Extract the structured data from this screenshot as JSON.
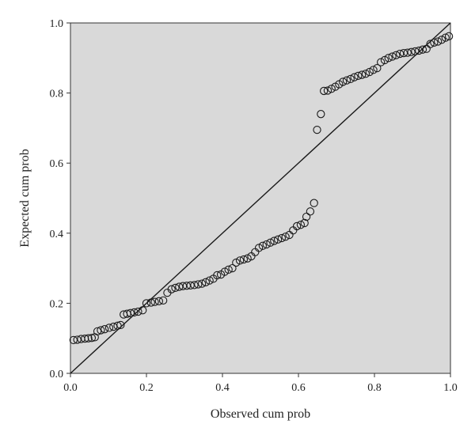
{
  "chart_data": {
    "type": "scatter",
    "title": "",
    "xlabel": "Observed cum prob",
    "ylabel": "Expected cum prob",
    "xlim": [
      0,
      1
    ],
    "ylim": [
      0,
      1
    ],
    "xticks": [
      "0.0",
      "0.2",
      "0.4",
      "0.6",
      "0.8",
      "1.0"
    ],
    "yticks": [
      "0.0",
      "0.2",
      "0.4",
      "0.6",
      "0.8",
      "1.0"
    ],
    "grid": false,
    "legend": "none",
    "reference_line": {
      "from": [
        0,
        0
      ],
      "to": [
        1,
        1
      ]
    },
    "colors": {
      "plot_background": "#d9d9d9",
      "marker_stroke": "#1a1a1a",
      "line": "#1a1a1a"
    },
    "series": [
      {
        "points": [
          [
            0.008,
            0.095
          ],
          [
            0.018,
            0.096
          ],
          [
            0.028,
            0.098
          ],
          [
            0.038,
            0.099
          ],
          [
            0.047,
            0.1
          ],
          [
            0.056,
            0.101
          ],
          [
            0.064,
            0.103
          ],
          [
            0.071,
            0.12
          ],
          [
            0.08,
            0.123
          ],
          [
            0.09,
            0.126
          ],
          [
            0.102,
            0.13
          ],
          [
            0.113,
            0.133
          ],
          [
            0.124,
            0.136
          ],
          [
            0.132,
            0.138
          ],
          [
            0.14,
            0.168
          ],
          [
            0.149,
            0.17
          ],
          [
            0.158,
            0.172
          ],
          [
            0.168,
            0.174
          ],
          [
            0.178,
            0.176
          ],
          [
            0.19,
            0.18
          ],
          [
            0.2,
            0.2
          ],
          [
            0.212,
            0.202
          ],
          [
            0.222,
            0.204
          ],
          [
            0.233,
            0.206
          ],
          [
            0.244,
            0.208
          ],
          [
            0.255,
            0.23
          ],
          [
            0.266,
            0.24
          ],
          [
            0.276,
            0.244
          ],
          [
            0.286,
            0.247
          ],
          [
            0.296,
            0.249
          ],
          [
            0.306,
            0.25
          ],
          [
            0.316,
            0.251
          ],
          [
            0.326,
            0.252
          ],
          [
            0.336,
            0.254
          ],
          [
            0.346,
            0.256
          ],
          [
            0.356,
            0.26
          ],
          [
            0.366,
            0.265
          ],
          [
            0.376,
            0.27
          ],
          [
            0.386,
            0.28
          ],
          [
            0.396,
            0.282
          ],
          [
            0.406,
            0.29
          ],
          [
            0.416,
            0.296
          ],
          [
            0.426,
            0.3
          ],
          [
            0.436,
            0.316
          ],
          [
            0.446,
            0.322
          ],
          [
            0.456,
            0.325
          ],
          [
            0.466,
            0.328
          ],
          [
            0.476,
            0.334
          ],
          [
            0.486,
            0.346
          ],
          [
            0.496,
            0.358
          ],
          [
            0.506,
            0.364
          ],
          [
            0.516,
            0.368
          ],
          [
            0.526,
            0.373
          ],
          [
            0.536,
            0.378
          ],
          [
            0.546,
            0.382
          ],
          [
            0.556,
            0.386
          ],
          [
            0.566,
            0.39
          ],
          [
            0.576,
            0.395
          ],
          [
            0.586,
            0.408
          ],
          [
            0.596,
            0.42
          ],
          [
            0.606,
            0.424
          ],
          [
            0.616,
            0.429
          ],
          [
            0.621,
            0.447
          ],
          [
            0.631,
            0.462
          ],
          [
            0.641,
            0.486
          ],
          [
            0.649,
            0.695
          ],
          [
            0.659,
            0.74
          ],
          [
            0.667,
            0.806
          ],
          [
            0.677,
            0.807
          ],
          [
            0.687,
            0.812
          ],
          [
            0.697,
            0.818
          ],
          [
            0.707,
            0.825
          ],
          [
            0.717,
            0.832
          ],
          [
            0.727,
            0.836
          ],
          [
            0.737,
            0.84
          ],
          [
            0.747,
            0.845
          ],
          [
            0.757,
            0.849
          ],
          [
            0.767,
            0.852
          ],
          [
            0.777,
            0.855
          ],
          [
            0.787,
            0.86
          ],
          [
            0.797,
            0.866
          ],
          [
            0.807,
            0.871
          ],
          [
            0.817,
            0.888
          ],
          [
            0.827,
            0.894
          ],
          [
            0.837,
            0.9
          ],
          [
            0.847,
            0.904
          ],
          [
            0.857,
            0.908
          ],
          [
            0.867,
            0.912
          ],
          [
            0.877,
            0.914
          ],
          [
            0.887,
            0.915
          ],
          [
            0.897,
            0.917
          ],
          [
            0.907,
            0.919
          ],
          [
            0.917,
            0.921
          ],
          [
            0.927,
            0.924
          ],
          [
            0.937,
            0.926
          ],
          [
            0.947,
            0.94
          ],
          [
            0.957,
            0.944
          ],
          [
            0.967,
            0.947
          ],
          [
            0.977,
            0.952
          ],
          [
            0.987,
            0.958
          ],
          [
            0.996,
            0.962
          ]
        ]
      }
    ]
  }
}
